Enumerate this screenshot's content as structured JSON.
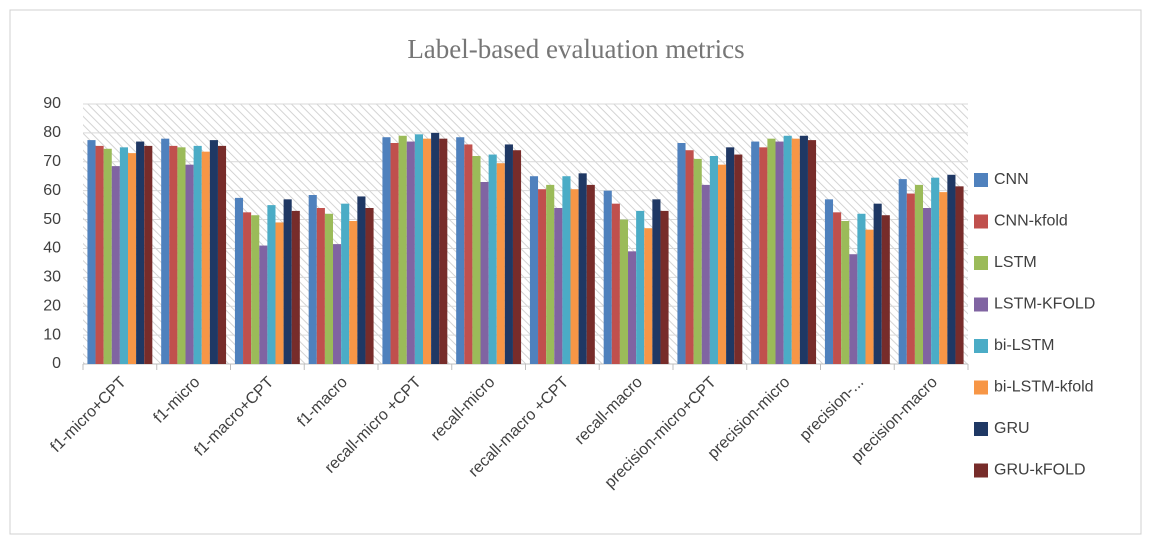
{
  "chart_data": {
    "type": "bar",
    "title": "Label-based evaluation metrics",
    "categories": [
      "f1-micro+CPT",
      "f1-micro",
      "f1-macro+CPT",
      "f1-macro",
      "recall-micro +CPT",
      "recall-micro",
      "recall-macro +CPT",
      "recall-macro",
      "precision-micro+CPT",
      "precision-micro",
      "precision-...",
      "precision-macro"
    ],
    "series": [
      {
        "name": "CNN",
        "color": "#4f81bd",
        "values": [
          77.5,
          78,
          57.5,
          58.5,
          78.5,
          78.5,
          65,
          60,
          76.5,
          77,
          57,
          64
        ]
      },
      {
        "name": "CNN-kfold",
        "color": "#c0504d",
        "values": [
          75.5,
          75.5,
          52.5,
          54,
          76.5,
          76,
          60.5,
          55.5,
          74,
          75,
          52.5,
          59
        ]
      },
      {
        "name": "LSTM",
        "color": "#9bbb59",
        "values": [
          74.5,
          75,
          51.5,
          52,
          79,
          72,
          62,
          50,
          71,
          78,
          49.5,
          62
        ]
      },
      {
        "name": "LSTM-KFOLD",
        "color": "#8064a2",
        "values": [
          68.5,
          69,
          41,
          41.5,
          77,
          63,
          54,
          39,
          62,
          77,
          38,
          54
        ]
      },
      {
        "name": "bi-LSTM",
        "color": "#4bacc6",
        "values": [
          75,
          75.5,
          55,
          55.5,
          79.5,
          72.5,
          65,
          53,
          72,
          79,
          52,
          64.5
        ]
      },
      {
        "name": "bi-LSTM-kfold",
        "color": "#f79646",
        "values": [
          73,
          73.5,
          49,
          49.5,
          78,
          69.5,
          60.5,
          47,
          69,
          78,
          46.5,
          59.5
        ]
      },
      {
        "name": "GRU",
        "color": "#1f3864",
        "values": [
          77,
          77.5,
          57,
          58,
          80,
          76,
          66,
          57,
          75,
          79,
          55.5,
          65.5
        ]
      },
      {
        "name": "GRU-kFOLD",
        "color": "#772c2a",
        "values": [
          75.5,
          75.5,
          53,
          54,
          78,
          74,
          62,
          53,
          72.5,
          77.5,
          51.5,
          61.5
        ]
      }
    ],
    "ylim": [
      0,
      90
    ],
    "yticks": [
      0,
      10,
      20,
      30,
      40,
      50,
      60,
      70,
      80,
      90
    ],
    "grid": true,
    "legend": "right"
  }
}
